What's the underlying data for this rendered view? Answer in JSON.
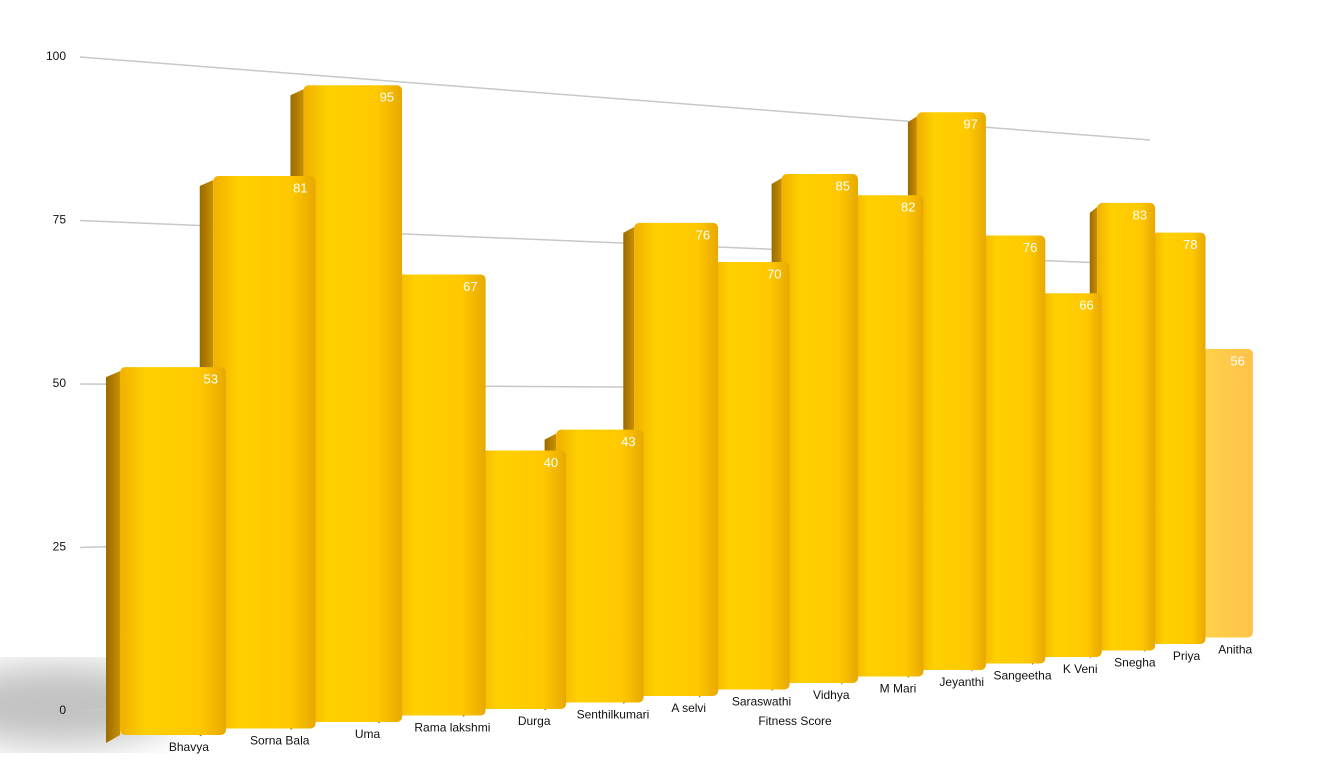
{
  "chart_data": {
    "type": "bar",
    "x_label": "Fitness Score",
    "categories": [
      "Bhavya",
      "Sorna Bala",
      "Uma",
      "Rama lakshmi",
      "Durga",
      "Senthilkumari",
      "A selvi",
      "Saraswathi",
      "Vidhya",
      "M Mari",
      "Jeyanthi",
      "Sangeetha",
      "K Veni",
      "Snegha",
      "Priya",
      "Anitha"
    ],
    "values": [
      53,
      81,
      95,
      67,
      40,
      43,
      76,
      70,
      85,
      82,
      97,
      76,
      66,
      83,
      78,
      56
    ],
    "color": "#ffc000",
    "ylim": [
      0,
      100
    ],
    "yticks": [
      0,
      25,
      50,
      75,
      100
    ],
    "grid": true
  }
}
